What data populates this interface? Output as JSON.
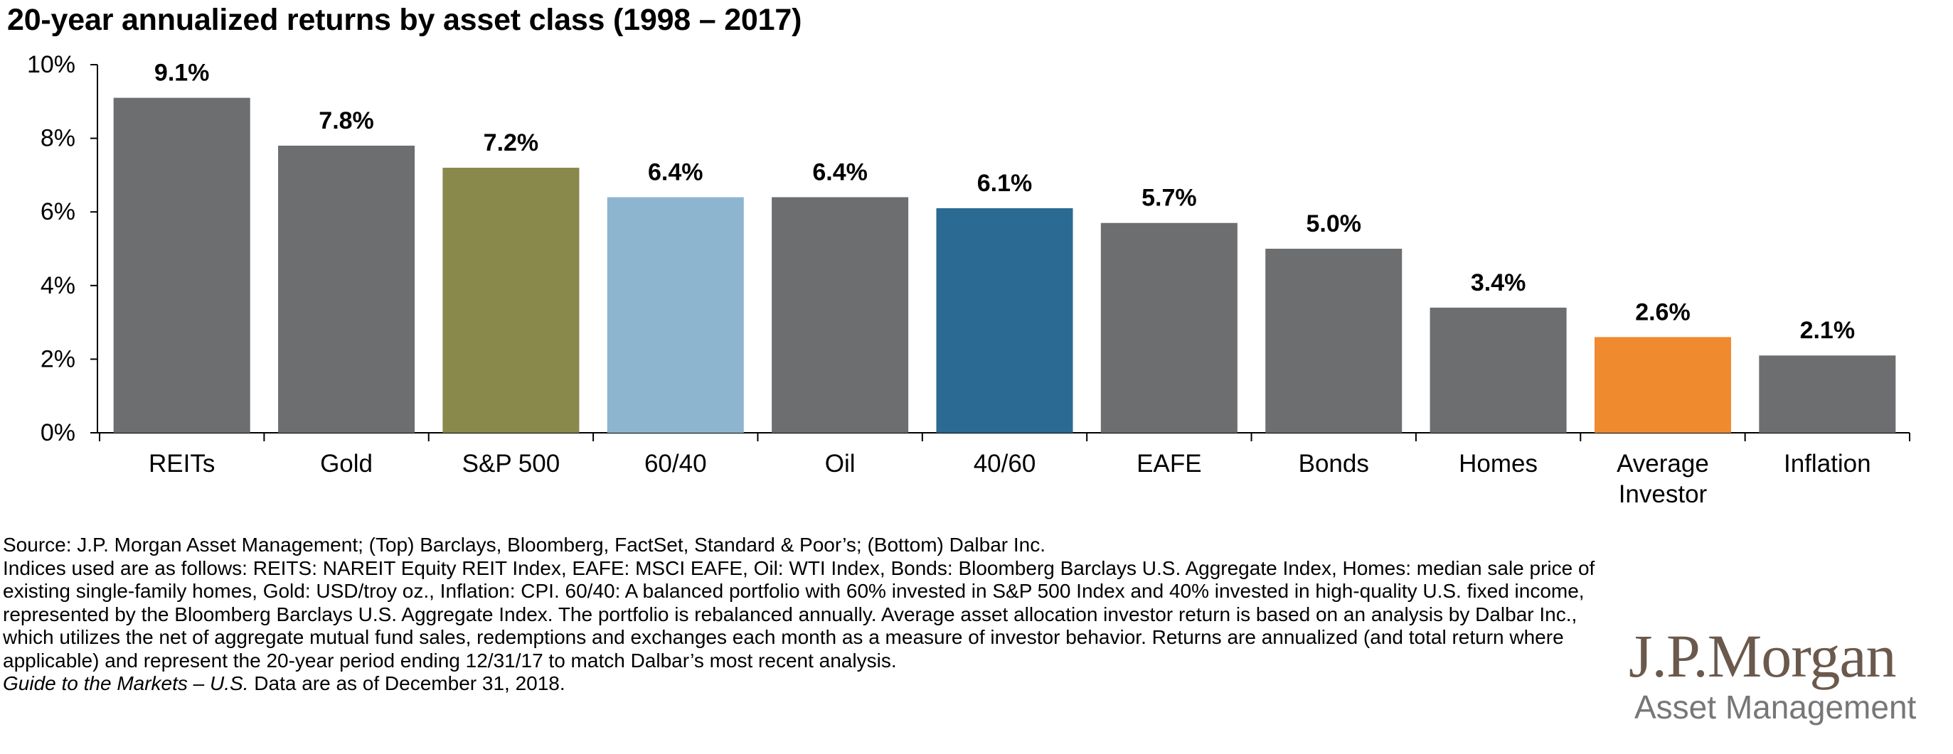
{
  "chart_data": {
    "type": "bar",
    "title": "20-year annualized returns by asset class (1998 – 2017)",
    "categories": [
      "REITs",
      "Gold",
      "S&P 500",
      "60/40",
      "Oil",
      "40/60",
      "EAFE",
      "Bonds",
      "Homes",
      "Average Investor",
      "Inflation"
    ],
    "values": [
      9.1,
      7.8,
      7.2,
      6.4,
      6.4,
      6.1,
      5.7,
      5.0,
      3.4,
      2.6,
      2.1
    ],
    "value_labels": [
      "9.1%",
      "7.8%",
      "7.2%",
      "6.4%",
      "6.4%",
      "6.1%",
      "5.7%",
      "5.0%",
      "3.4%",
      "2.6%",
      "2.1%"
    ],
    "bar_colors": [
      "#6d6e70",
      "#6d6e70",
      "#88894b",
      "#8eb5d0",
      "#6d6e70",
      "#2b6a92",
      "#6d6e70",
      "#6d6e70",
      "#6d6e70",
      "#ef8a2f",
      "#6d6e70"
    ],
    "y_ticks": [
      "0%",
      "2%",
      "4%",
      "6%",
      "8%",
      "10%"
    ],
    "ylim": [
      0,
      10
    ],
    "xlabel": "",
    "ylabel": "",
    "grid": false,
    "legend": "none"
  },
  "footnotes": {
    "source": "Source: J.P. Morgan Asset Management; (Top) Barclays, Bloomberg, FactSet, Standard & Poor’s; (Bottom) Dalbar Inc.",
    "indices": "Indices used are as follows: REITS: NAREIT Equity REIT Index, EAFE: MSCI EAFE, Oil: WTI Index, Bonds: Bloomberg Barclays U.S. Aggregate Index, Homes: median sale price of existing single-family homes, Gold: USD/troy oz., Inflation: CPI. 60/40: A balanced portfolio with 60% invested in S&P 500 Index and 40% invested in high-quality U.S. fixed income, represented by the Bloomberg Barclays U.S. Aggregate Index. The portfolio is rebalanced annually. Average asset allocation investor return is based on an analysis by Dalbar Inc., which utilizes the net of aggregate mutual fund sales, redemptions and exchanges each month as a measure of investor behavior. Returns are annualized (and total return where applicable) and represent the 20-year period ending 12/31/17 to match Dalbar’s most recent analysis.",
    "guide_italic": "Guide to the Markets – U.S.",
    "guide_rest": " Data are as of December 31, 2018."
  },
  "logo": {
    "name": "J.P.Morgan",
    "subtitle": "Asset Management",
    "name_color": "#6a594c",
    "subtitle_color": "#777777"
  }
}
